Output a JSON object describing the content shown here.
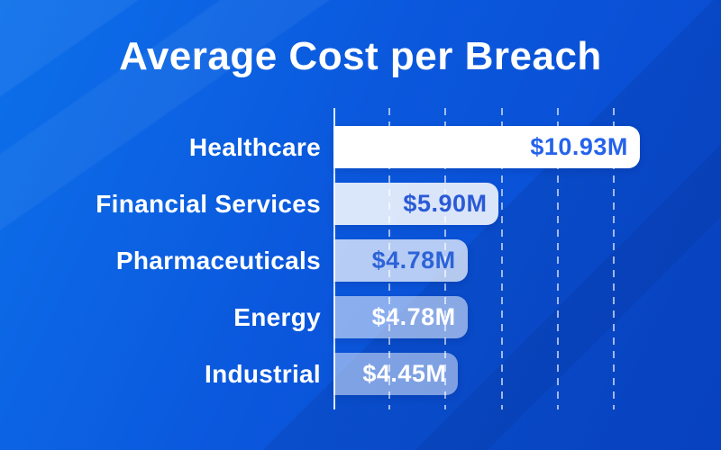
{
  "title": "Average Cost per Breach",
  "chart_data": {
    "type": "bar",
    "orientation": "horizontal",
    "title": "Average Cost per Breach",
    "unit": "USD millions",
    "categories": [
      "Healthcare",
      "Financial Services",
      "Pharmaceuticals",
      "Energy",
      "Industrial"
    ],
    "values": [
      10.93,
      5.9,
      4.78,
      4.78,
      4.45
    ],
    "value_labels": [
      "$10.93M",
      "$5.90M",
      "$4.78M",
      "$4.78M",
      "$4.45M"
    ],
    "bar_fills": [
      "rgba(255,255,255,1)",
      "rgba(255,255,255,0.85)",
      "rgba(255,255,255,0.70)",
      "rgba(255,255,255,0.52)",
      "rgba(255,255,255,0.48)"
    ],
    "value_text_colors": [
      "#2563eb",
      "#2a5ad6",
      "#2d63d8",
      "#ffffff",
      "#ffffff"
    ],
    "xlim": [
      0,
      11
    ],
    "gridline_interval": 2,
    "grid": "vertical-dashed",
    "legend": "none",
    "ylabel": "",
    "xlabel": ""
  },
  "style": {
    "background_gradient": [
      "#0c70ea",
      "#0b58dd",
      "#0847cd"
    ],
    "title_color": "#ffffff",
    "category_label_color": "#ffffff",
    "axis_line_color": "rgba(244,250,255,0.9)",
    "gridline_color": "rgba(255,255,255,0.62)"
  }
}
